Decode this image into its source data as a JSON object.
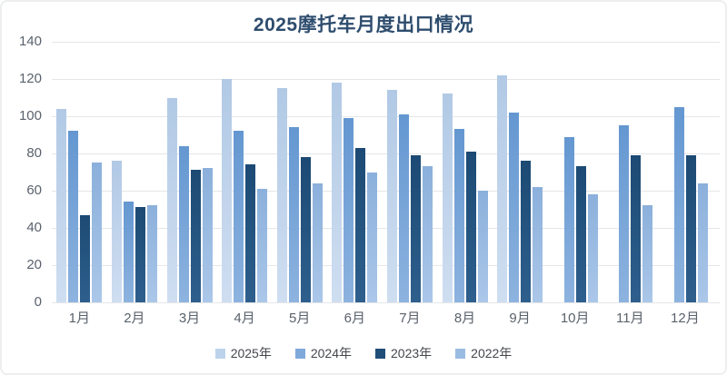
{
  "title": "2025摩托车月度出口情况",
  "chart_data": {
    "type": "bar",
    "title": "2025摩托车月度出口情况",
    "categories": [
      "1月",
      "2月",
      "3月",
      "4月",
      "5月",
      "6月",
      "7月",
      "8月",
      "9月",
      "10月",
      "11月",
      "12月"
    ],
    "series": [
      {
        "name": "2025年",
        "color": "#bdd3ec",
        "color_top": "#b1c9e5",
        "color_bottom": "#cfdef1",
        "values": [
          104,
          76,
          110,
          120,
          115,
          118,
          114,
          112,
          122,
          null,
          null,
          null
        ]
      },
      {
        "name": "2024年",
        "color": "#7fa9da",
        "color_top": "#6497d1",
        "color_bottom": "#8db3df",
        "values": [
          92,
          54,
          84,
          92,
          94,
          99,
          101,
          93,
          102,
          89,
          95,
          105
        ]
      },
      {
        "name": "2023年",
        "color": "#1f4e79",
        "color_top": "#1c4a74",
        "color_bottom": "#2e5f8d",
        "values": [
          47,
          51,
          71,
          74,
          78,
          83,
          79,
          81,
          76,
          73,
          79,
          79
        ]
      },
      {
        "name": "2022年",
        "color": "#9abce2",
        "color_top": "#8bb0db",
        "color_bottom": "#abc7e9",
        "values": [
          75,
          52,
          72,
          61,
          64,
          70,
          73,
          60,
          62,
          58,
          52,
          64
        ]
      }
    ],
    "ylim": [
      0,
      140
    ],
    "yticks": [
      0,
      20,
      40,
      60,
      80,
      100,
      120,
      140
    ],
    "grid": true,
    "legend_position": "bottom"
  }
}
